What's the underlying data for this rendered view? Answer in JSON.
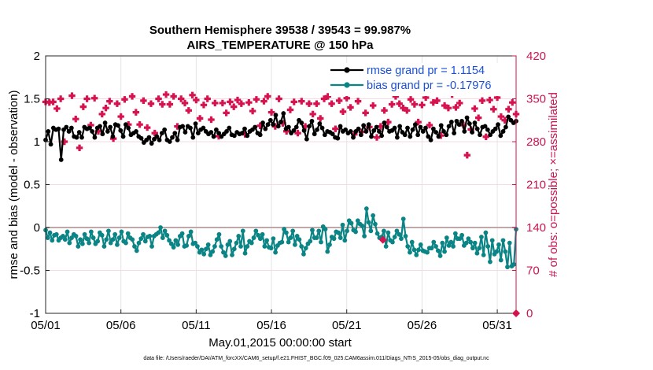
{
  "colors": {
    "rmse": "#000000",
    "bias": "#0a8484",
    "obs": "#d6124f",
    "right_axis": "#c8154e",
    "legend_text": "#1a4fd6",
    "zero_line": "#c0a8a8"
  },
  "chart_data": {
    "type": "line",
    "title_line1": "Southern Hemisphere 39538 / 39543 = 99.987%",
    "title_line2": "AIRS_TEMPERATURE @ 150 hPa",
    "xlabel": "May.01,2015 00:00:00 start",
    "ylabel_left": "rmse and bias (model - observation)",
    "ylabel_right": "# of obs: o=possible; ×=assimilated",
    "footnote": "data file: /Users/raeder/DAI/ATM_forcXX/CAM6_setup/f.e21.FHIST_BGC.f09_025.CAM6assim.011/Diags_NTrS_2015-05/obs_diag_output.nc",
    "x_tick_labels": [
      "05/01",
      "05/06",
      "05/11",
      "05/16",
      "05/21",
      "05/26",
      "05/31"
    ],
    "x_tick_days": [
      0,
      5,
      10,
      15,
      20,
      25,
      30
    ],
    "xlim_days": [
      0,
      31.25
    ],
    "left_ylim": [
      -1,
      2
    ],
    "left_ticks": [
      "2",
      "1.5",
      "1",
      "0.5",
      "0",
      "-0.5",
      "-1"
    ],
    "right_ylim": [
      0,
      420
    ],
    "right_ticks": [
      "420",
      "350",
      "280",
      "210",
      "140",
      "70",
      "0"
    ],
    "zero_line_value": 0,
    "grid": true,
    "legend_position": "top-right",
    "series": [
      {
        "name": "rmse",
        "legend_label": "rmse grand pr = 1.1154",
        "axis": "left",
        "marker": "filled-circle",
        "values": [
          1.02,
          1.12,
          0.97,
          1.16,
          1.14,
          1.15,
          0.79,
          1.14,
          1.17,
          1.12,
          1.16,
          1.06,
          1.05,
          1.11,
          1.05,
          1.17,
          1.15,
          1.16,
          1.12,
          1.05,
          1.16,
          1.18,
          1.09,
          1.22,
          1.12,
          1.17,
          1.06,
          1.2,
          1.19,
          1.13,
          1.06,
          1.2,
          1.16,
          1.08,
          1.1,
          1.12,
          1.06,
          1.04,
          0.99,
          1.02,
          1.05,
          0.98,
          1.03,
          1.06,
          1.02,
          1.1,
          1.14,
          1.02,
          1.0,
          1.05,
          1.1,
          1.02,
          1.17,
          1.18,
          1.11,
          1.18,
          1.16,
          1.05,
          1.21,
          1.1,
          1.14,
          1.16,
          1.12,
          1.09,
          1.11,
          1.06,
          1.14,
          1.1,
          1.06,
          1.09,
          1.12,
          1.16,
          1.08,
          1.07,
          1.11,
          1.09,
          1.1,
          1.15,
          1.07,
          1.12,
          1.14,
          1.17,
          1.1,
          1.08,
          1.22,
          1.15,
          1.2,
          1.25,
          1.2,
          1.31,
          1.18,
          1.23,
          1.33,
          1.15,
          1.17,
          1.1,
          1.13,
          1.17,
          1.25,
          1.22,
          1.13,
          1.03,
          1.18,
          1.24,
          1.09,
          1.14,
          1.21,
          1.16,
          1.08,
          1.12,
          1.11,
          1.09,
          1.05,
          1.04,
          1.18,
          1.12,
          1.14,
          1.1,
          1.12,
          1.05,
          1.12,
          1.15,
          1.08,
          1.19,
          1.12,
          1.2,
          1.06,
          1.13,
          1.17,
          1.12,
          1.07,
          1.22,
          1.17,
          1.12,
          1.13,
          1.16,
          1.05,
          1.18,
          1.11,
          1.08,
          1.16,
          1.06,
          1.14,
          1.2,
          1.08,
          1.17,
          1.12,
          1.16,
          1.06,
          1.02,
          1.15,
          1.11,
          1.06,
          1.19,
          1.12,
          1.08,
          1.18,
          1.23,
          1.1,
          1.24,
          1.2,
          1.24,
          1.12,
          1.28,
          1.21,
          1.11,
          1.22,
          1.15,
          1.08,
          1.17,
          1.18,
          1.14,
          1.08,
          1.12,
          1.15,
          1.2,
          1.07,
          1.12,
          1.17,
          1.29,
          1.25,
          1.22,
          1.24
        ]
      },
      {
        "name": "bias",
        "legend_label": "bias grand pr = -0.17976",
        "axis": "left",
        "marker": "filled-circle",
        "values": [
          -0.03,
          -0.12,
          -0.06,
          -0.15,
          -0.09,
          -0.08,
          -0.15,
          -0.12,
          -0.1,
          -0.14,
          -0.05,
          -0.18,
          -0.12,
          -0.08,
          -0.1,
          -0.22,
          -0.14,
          -0.19,
          -0.08,
          -0.13,
          -0.18,
          -0.05,
          -0.12,
          -0.19,
          -0.16,
          -0.06,
          -0.09,
          -0.22,
          -0.14,
          -0.04,
          -0.18,
          -0.14,
          -0.08,
          -0.2,
          -0.12,
          -0.05,
          -0.16,
          -0.18,
          -0.07,
          -0.12,
          -0.14,
          -0.22,
          -0.27,
          -0.18,
          -0.13,
          -0.08,
          -0.16,
          -0.11,
          -0.1,
          -0.22,
          -0.1,
          -0.08,
          -0.06,
          0.0,
          -0.12,
          -0.04,
          -0.09,
          -0.15,
          -0.19,
          -0.23,
          -0.15,
          -0.2,
          -0.1,
          -0.07,
          -0.22,
          -0.21,
          -0.1,
          -0.05,
          -0.19,
          -0.18,
          -0.22,
          -0.29,
          -0.26,
          -0.31,
          -0.25,
          -0.2,
          -0.32,
          -0.28,
          -0.22,
          -0.14,
          -0.08,
          -0.22,
          -0.29,
          -0.33,
          -0.2,
          -0.16,
          -0.32,
          -0.25,
          -0.18,
          -0.1,
          -0.22,
          -0.04,
          -0.3,
          -0.22,
          -0.16,
          -0.18,
          -0.12,
          -0.04,
          -0.09,
          -0.13,
          -0.08,
          -0.22,
          -0.15,
          -0.23,
          -0.24,
          -0.13,
          -0.29,
          -0.21,
          -0.18,
          -0.17,
          -0.02,
          -0.06,
          -0.17,
          -0.12,
          -0.04,
          -0.2,
          -0.1,
          -0.14,
          -0.22,
          -0.31,
          -0.24,
          -0.19,
          -0.16,
          -0.03,
          -0.12,
          -0.12,
          -0.04,
          -0.17,
          0.01,
          -0.02,
          -0.28,
          -0.2,
          -0.11,
          -0.13,
          -0.05,
          -0.06,
          -0.12,
          0.03,
          -0.15,
          -0.04,
          0.08,
          0.05,
          -0.03,
          -0.05,
          0.08,
          0.04,
          0.02,
          -0.1,
          0.22,
          0.06,
          -0.04,
          0.14,
          0.04,
          -0.07,
          -0.12,
          -0.11,
          -0.04,
          -0.22,
          -0.06,
          -0.15,
          -0.17,
          -0.11,
          -0.04,
          -0.08,
          -0.13,
          0.1,
          -0.1,
          -0.22,
          -0.29,
          -0.17,
          -0.26,
          -0.32,
          -0.26,
          -0.2,
          -0.27,
          -0.28,
          -0.29,
          -0.24,
          -0.24,
          -0.17,
          -0.22,
          -0.27,
          -0.33,
          -0.18,
          -0.28,
          -0.12,
          -0.21,
          -0.17,
          -0.22,
          -0.07,
          -0.13,
          -0.13,
          -0.09,
          -0.21,
          -0.18,
          -0.13,
          -0.17,
          -0.24,
          -0.18,
          -0.3,
          -0.24,
          -0.11,
          -0.32,
          -0.06,
          -0.22,
          -0.4,
          -0.15,
          -0.31,
          -0.28,
          -0.2,
          -0.38,
          -0.15,
          -0.28,
          -0.46,
          -0.18,
          -0.45,
          -0.43,
          -0.02
        ]
      },
      {
        "name": "obs_assimilated",
        "axis": "right",
        "marker": "filled-cross",
        "x_days": [
          0.0,
          0.25,
          0.5,
          0.75,
          1.0,
          1.25,
          1.75,
          2.0,
          2.25,
          2.5,
          2.75,
          3.0,
          3.25,
          3.5,
          3.75,
          4.0,
          4.25,
          4.5,
          4.75,
          5.0,
          5.25,
          5.5,
          5.75,
          6.0,
          6.25,
          6.5,
          6.75,
          7.0,
          7.25,
          7.5,
          7.75,
          8.0,
          8.25,
          8.5,
          8.75,
          9.0,
          9.25,
          9.5,
          9.75,
          10.0,
          10.25,
          10.5,
          10.75,
          11.0,
          11.25,
          11.5,
          11.75,
          12.0,
          12.25,
          12.5,
          12.75,
          13.0,
          13.25,
          13.5,
          13.75,
          14.0,
          14.25,
          14.5,
          14.75,
          15.0,
          15.25,
          15.5,
          15.75,
          16.0,
          16.25,
          16.5,
          16.75,
          17.0,
          17.25,
          17.5,
          17.75,
          18.0,
          18.25,
          18.5,
          18.75,
          19.0,
          19.25,
          19.5,
          19.75,
          20.0,
          20.25,
          20.5,
          20.75,
          21.0,
          21.25,
          21.5,
          21.75,
          22.0,
          22.25,
          22.5,
          22.75,
          23.0,
          23.25,
          23.5,
          23.75,
          24.0,
          24.25,
          24.5,
          24.75,
          25.0,
          25.25,
          25.5,
          25.75,
          26.0,
          26.25,
          26.5,
          26.75,
          27.0,
          27.25,
          27.5,
          27.75,
          28.0,
          28.25,
          28.5,
          28.75,
          29.0,
          29.25,
          29.5,
          29.75,
          30.0,
          30.25,
          30.5,
          30.75,
          31.0,
          31.25
        ],
        "values": [
          345,
          344,
          345,
          334,
          350,
          280,
          355,
          317,
          270,
          337,
          350,
          307,
          351,
          297,
          325,
          335,
          346,
          285,
          342,
          321,
          349,
          308,
          354,
          328,
          308,
          347,
          303,
          342,
          294,
          350,
          341,
          357,
          341,
          354,
          305,
          350,
          343,
          331,
          356,
          348,
          318,
          340,
          350,
          316,
          343,
          289,
          343,
          327,
          345,
          337,
          348,
          342,
          292,
          344,
          330,
          349,
          306,
          346,
          354,
          328,
          305,
          350,
          310,
          297,
          332,
          345,
          294,
          346,
          305,
          342,
          325,
          342,
          318,
          350,
          354,
          342,
          301,
          347,
          329,
          351,
          336,
          292,
          346,
          296,
          327,
          304,
          339,
          287,
          305,
          331,
          312,
          341,
          354,
          342,
          335,
          331,
          349,
          341,
          312,
          340,
          352,
          307,
          344,
          347,
          290,
          339,
          335,
          357,
          336,
          343,
          307,
          258,
          300,
          334,
          319,
          347,
          288,
          348,
          333,
          352,
          321,
          315,
          333,
          344,
          325
        ]
      },
      {
        "name": "obs_possible_marker",
        "axis": "right",
        "marker": "filled-diamond",
        "x_days": [
          22.4
        ],
        "values": [
          120
        ]
      },
      {
        "name": "obs_zero_marker",
        "axis": "right",
        "marker": "filled-diamond",
        "x_days": [
          31.25
        ],
        "values": [
          0
        ]
      }
    ]
  }
}
